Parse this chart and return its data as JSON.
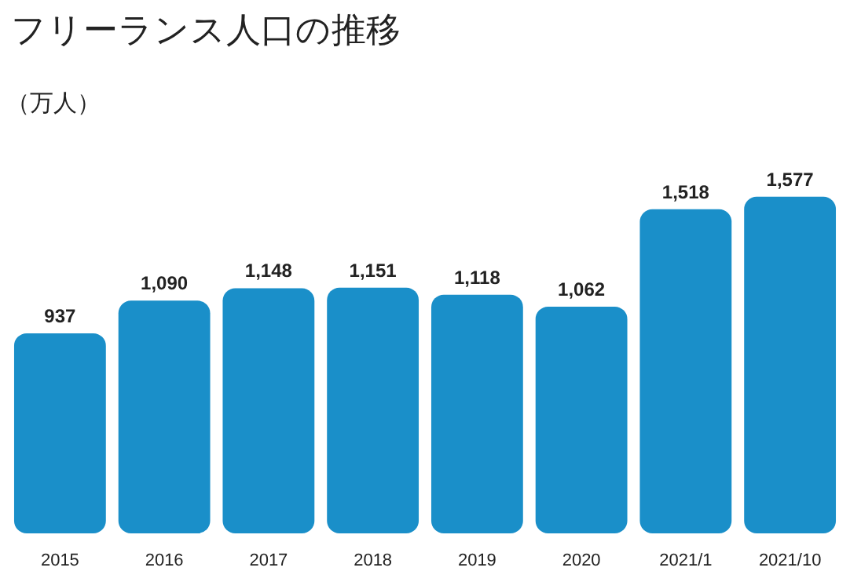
{
  "chart_data": {
    "type": "bar",
    "title": "フリーランス人口の推移",
    "annotations": [
      "（万人）"
    ],
    "categories": [
      "2015",
      "2016",
      "2017",
      "2018",
      "2019",
      "2020",
      "2021/1",
      "2021/10"
    ],
    "values": [
      937,
      1090,
      1148,
      1151,
      1118,
      1062,
      1518,
      1577
    ],
    "value_labels": [
      "937",
      "1,090",
      "1,148",
      "1,151",
      "1,118",
      "1,062",
      "1,518",
      "1,577"
    ],
    "color": "#1a8fc9",
    "tick_labels": "x"
  }
}
